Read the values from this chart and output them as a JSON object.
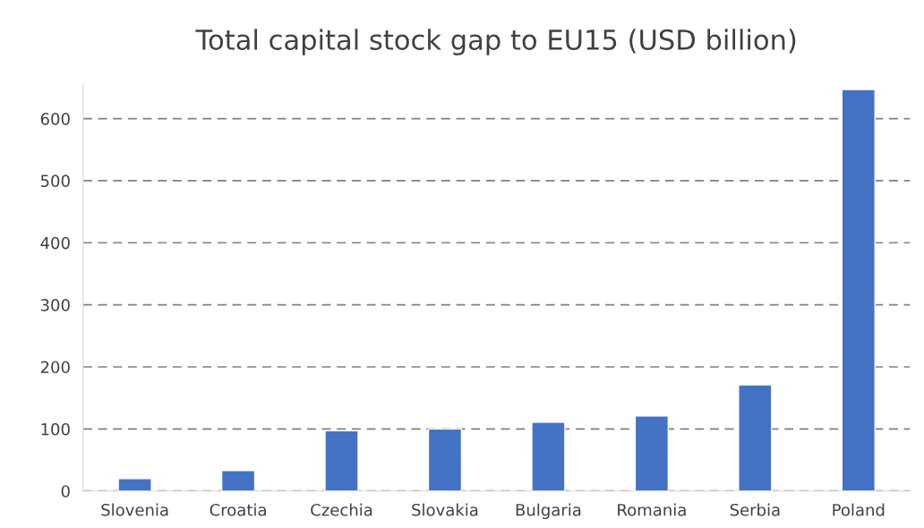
{
  "chart_data": {
    "type": "bar",
    "title": "Total capital stock gap to EU15 (USD billion)",
    "categories": [
      "Slovenia",
      "Croatia",
      "Czechia",
      "Slovakia",
      "Bulgaria",
      "Romania",
      "Serbia",
      "Poland"
    ],
    "values": [
      20,
      33,
      97,
      100,
      111,
      121,
      171,
      647
    ],
    "color": "#4472c4",
    "ylim": [
      0,
      655
    ],
    "yticks": [
      0,
      100,
      200,
      300,
      400,
      500,
      600
    ],
    "grid": "y",
    "legend": false
  }
}
